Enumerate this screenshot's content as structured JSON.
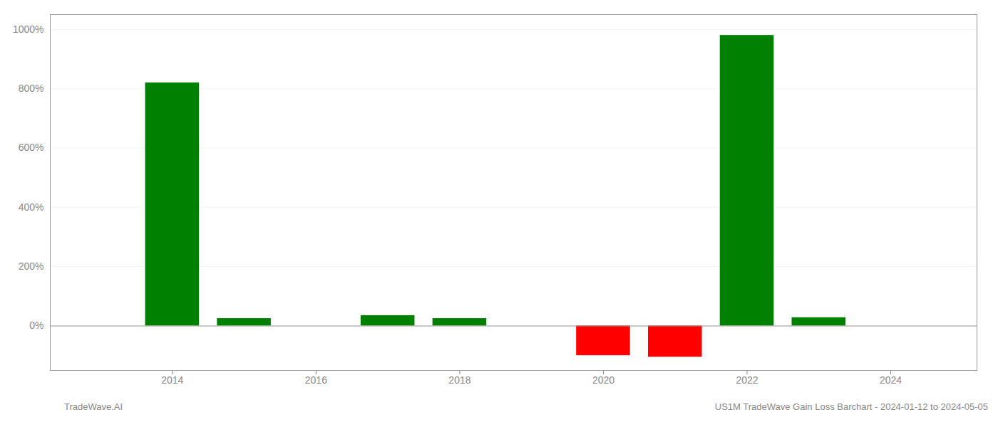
{
  "chart_data": {
    "type": "bar",
    "title": "US1M TradeWave Gain Loss Barchart - 2024-01-12 to 2024-05-05",
    "annotations": [
      "TradeWave.AI"
    ],
    "x": [
      2014,
      2015,
      2017,
      2018,
      2020,
      2021,
      2022,
      2023
    ],
    "values": [
      820,
      25,
      35,
      25,
      -100,
      -105,
      980,
      28
    ],
    "colors": [
      "#008000",
      "#008000",
      "#008000",
      "#008000",
      "#ff0000",
      "#ff0000",
      "#008000",
      "#008000"
    ],
    "xlim": [
      2012.3,
      2025.2
    ],
    "ylim": [
      -150,
      1050
    ],
    "xticks": [
      2014,
      2016,
      2018,
      2020,
      2022,
      2024
    ],
    "yticks": [
      {
        "value": 0,
        "label": "0%"
      },
      {
        "value": 200,
        "label": "200%"
      },
      {
        "value": 400,
        "label": "400%"
      },
      {
        "value": 600,
        "label": "600%"
      },
      {
        "value": 800,
        "label": "800%"
      },
      {
        "value": 1000,
        "label": "1000%"
      }
    ],
    "grid": true
  }
}
